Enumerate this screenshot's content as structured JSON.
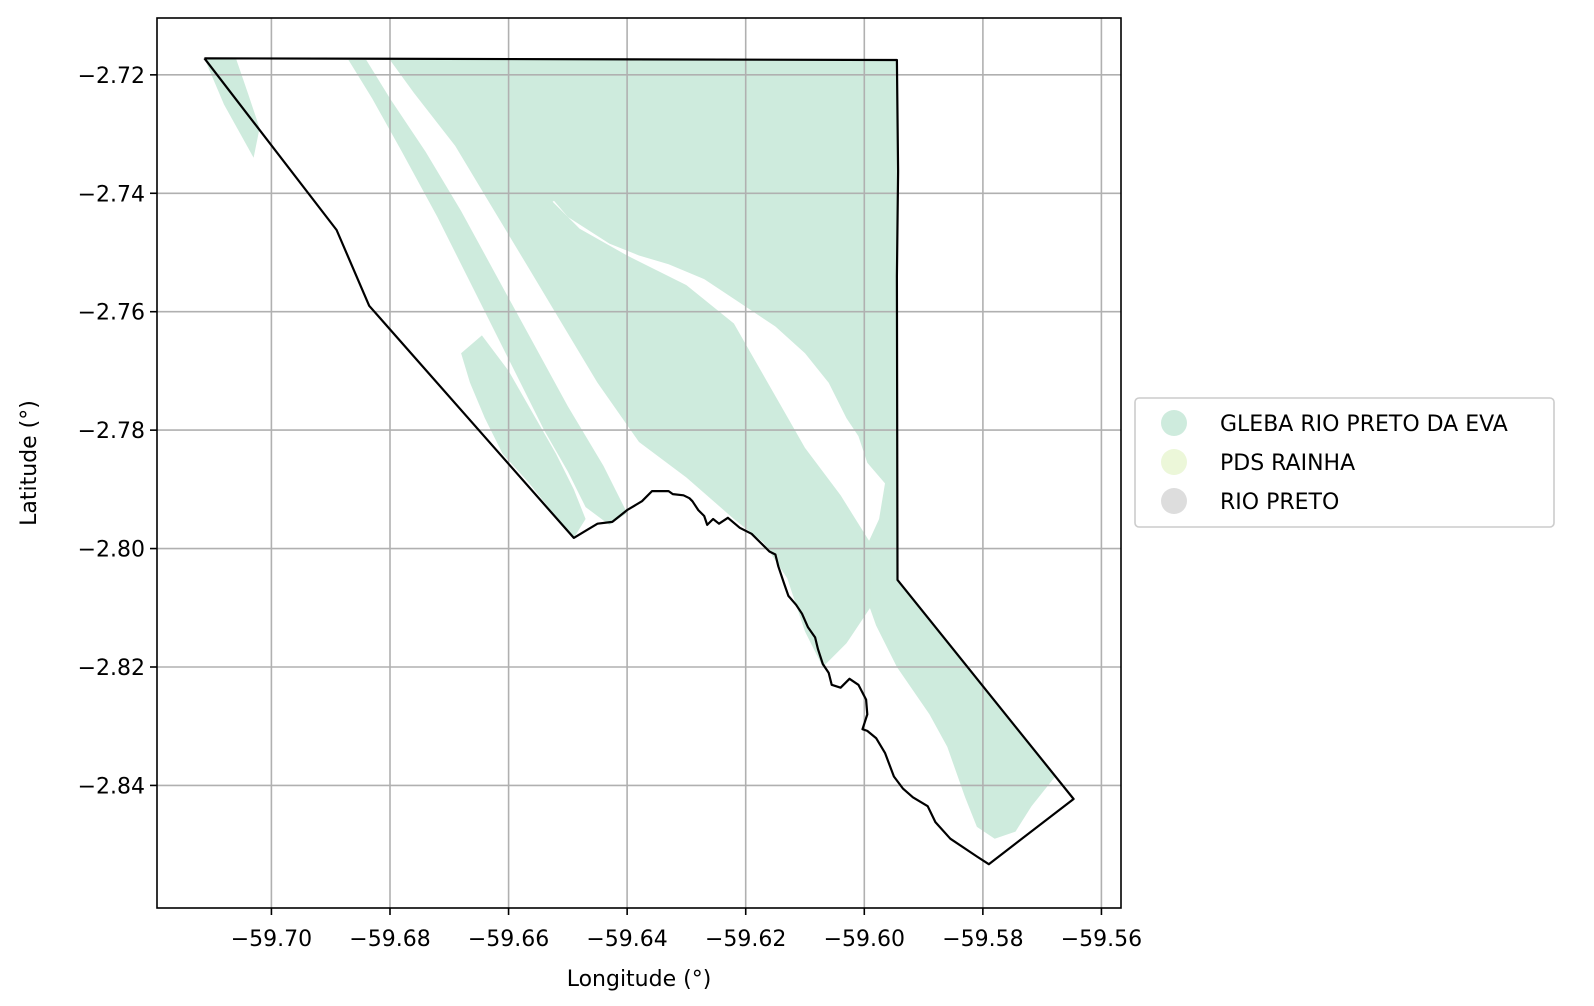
{
  "chart_data": {
    "type": "map",
    "xlabel": "Longitude (°)",
    "ylabel": "Latitude (°)",
    "xlim": [
      -59.7193,
      -59.5567
    ],
    "ylim": [
      -2.8607,
      -2.7104
    ],
    "xticks": [
      -59.7,
      -59.68,
      -59.66,
      -59.64,
      -59.62,
      -59.6,
      -59.58,
      -59.56
    ],
    "xtick_labels": [
      "−59.70",
      "−59.68",
      "−59.66",
      "−59.64",
      "−59.62",
      "−59.60",
      "−59.58",
      "−59.56"
    ],
    "yticks": [
      -2.72,
      -2.74,
      -2.76,
      -2.78,
      -2.8,
      -2.82,
      -2.84
    ],
    "ytick_labels": [
      "−2.72",
      "−2.74",
      "−2.76",
      "−2.78",
      "−2.80",
      "−2.82",
      "−2.84"
    ],
    "grid": true,
    "legend_position": "right-center",
    "legend": [
      {
        "label": "GLEBA RIO PRETO DA EVA",
        "color": "#ceebdd"
      },
      {
        "label": "PDS RAINHA",
        "color": "#ecf7d9"
      },
      {
        "label": "RIO PRETO",
        "color": "#dddddd"
      }
    ],
    "boundary": {
      "name": "area-boundary",
      "color": "#000000",
      "points": [
        [
          -59.7113,
          -2.7172
        ],
        [
          -59.5945,
          -2.7175
        ],
        [
          -59.5943,
          -2.7363
        ],
        [
          -59.5945,
          -2.754
        ],
        [
          -59.5944,
          -2.8053
        ],
        [
          -59.5647,
          -2.8423
        ],
        [
          -59.579,
          -2.8533
        ],
        [
          -59.581,
          -2.852
        ],
        [
          -59.5855,
          -2.849
        ],
        [
          -59.588,
          -2.8462
        ],
        [
          -59.5893,
          -2.8435
        ],
        [
          -59.5918,
          -2.842
        ],
        [
          -59.5935,
          -2.8405
        ],
        [
          -59.595,
          -2.8385
        ],
        [
          -59.5965,
          -2.8345
        ],
        [
          -59.598,
          -2.832
        ],
        [
          -59.5995,
          -2.8308
        ],
        [
          -59.6003,
          -2.8305
        ],
        [
          -59.5995,
          -2.828
        ],
        [
          -59.5997,
          -2.8255
        ],
        [
          -59.601,
          -2.823
        ],
        [
          -59.6025,
          -2.822
        ],
        [
          -59.604,
          -2.8235
        ],
        [
          -59.6055,
          -2.823
        ],
        [
          -59.606,
          -2.821
        ],
        [
          -59.607,
          -2.8195
        ],
        [
          -59.6078,
          -2.817
        ],
        [
          -59.6083,
          -2.815
        ],
        [
          -59.6095,
          -2.8133
        ],
        [
          -59.6105,
          -2.811
        ],
        [
          -59.6115,
          -2.8095
        ],
        [
          -59.6128,
          -2.808
        ],
        [
          -59.6135,
          -2.806
        ],
        [
          -59.6145,
          -2.803
        ],
        [
          -59.615,
          -2.801
        ],
        [
          -59.616,
          -2.8005
        ],
        [
          -59.6175,
          -2.799
        ],
        [
          -59.619,
          -2.7975
        ],
        [
          -59.621,
          -2.7965
        ],
        [
          -59.623,
          -2.7948
        ],
        [
          -59.6245,
          -2.7958
        ],
        [
          -59.6255,
          -2.795
        ],
        [
          -59.6265,
          -2.796
        ],
        [
          -59.627,
          -2.7945
        ],
        [
          -59.628,
          -2.7935
        ],
        [
          -59.629,
          -2.792
        ],
        [
          -59.6295,
          -2.7915
        ],
        [
          -59.6305,
          -2.791
        ],
        [
          -59.6323,
          -2.7908
        ],
        [
          -59.633,
          -2.7903
        ],
        [
          -59.6358,
          -2.7903
        ],
        [
          -59.6375,
          -2.792
        ],
        [
          -59.64,
          -2.7935
        ],
        [
          -59.6425,
          -2.7955
        ],
        [
          -59.645,
          -2.7958
        ],
        [
          -59.647,
          -2.797
        ],
        [
          -59.649,
          -2.7982
        ],
        [
          -59.6835,
          -2.759
        ],
        [
          -59.689,
          -2.7462
        ],
        [
          -59.7113,
          -2.7172
        ]
      ]
    },
    "land_cover_regions": [
      {
        "class": "GLEBA RIO PRETO DA EVA",
        "points": [
          [
            -59.5943,
            -2.718
          ],
          [
            -59.5945,
            -2.8053
          ],
          [
            -59.5678,
            -2.8385
          ],
          [
            -59.5718,
            -2.8435
          ],
          [
            -59.5745,
            -2.8478
          ],
          [
            -59.578,
            -2.849
          ],
          [
            -59.581,
            -2.847
          ],
          [
            -59.583,
            -2.842
          ],
          [
            -59.586,
            -2.8335
          ],
          [
            -59.589,
            -2.828
          ],
          [
            -59.5945,
            -2.82
          ],
          [
            -59.598,
            -2.813
          ],
          [
            -59.6003,
            -2.8065
          ],
          [
            -59.5998,
            -2.8
          ],
          [
            -59.5975,
            -2.795
          ],
          [
            -59.5965,
            -2.789
          ],
          [
            -59.5995,
            -2.7855
          ],
          [
            -59.601,
            -2.781
          ],
          [
            -59.603,
            -2.778
          ],
          [
            -59.606,
            -2.772
          ],
          [
            -59.61,
            -2.767
          ],
          [
            -59.615,
            -2.7625
          ],
          [
            -59.621,
            -2.7585
          ],
          [
            -59.627,
            -2.7545
          ],
          [
            -59.633,
            -2.752
          ],
          [
            -59.638,
            -2.7505
          ],
          [
            -59.643,
            -2.7485
          ],
          [
            -59.65,
            -2.744
          ],
          [
            -59.656,
            -2.737
          ],
          [
            -59.661,
            -2.73
          ],
          [
            -59.665,
            -2.724
          ],
          [
            -59.669,
            -2.719
          ],
          [
            -59.67,
            -2.7175
          ],
          [
            -59.5943,
            -2.7175
          ]
        ]
      },
      {
        "class": "GLEBA RIO PRETO DA EVA",
        "points": [
          [
            -59.67,
            -2.7175
          ],
          [
            -59.664,
            -2.7245
          ],
          [
            -59.659,
            -2.733
          ],
          [
            -59.654,
            -2.74
          ],
          [
            -59.648,
            -2.746
          ],
          [
            -59.64,
            -2.7505
          ],
          [
            -59.63,
            -2.7555
          ],
          [
            -59.622,
            -2.762
          ],
          [
            -59.618,
            -2.769
          ],
          [
            -59.614,
            -2.776
          ],
          [
            -59.61,
            -2.783
          ],
          [
            -59.604,
            -2.791
          ],
          [
            -59.599,
            -2.799
          ],
          [
            -59.599,
            -2.81
          ],
          [
            -59.603,
            -2.816
          ],
          [
            -59.607,
            -2.82
          ],
          [
            -59.61,
            -2.814
          ],
          [
            -59.613,
            -2.805
          ],
          [
            -59.617,
            -2.799
          ],
          [
            -59.622,
            -2.795
          ],
          [
            -59.63,
            -2.788
          ],
          [
            -59.638,
            -2.782
          ],
          [
            -59.645,
            -2.772
          ],
          [
            -59.651,
            -2.762
          ],
          [
            -59.657,
            -2.752
          ],
          [
            -59.663,
            -2.742
          ],
          [
            -59.669,
            -2.732
          ],
          [
            -59.676,
            -2.723
          ],
          [
            -59.68,
            -2.7175
          ]
        ]
      },
      {
        "class": "GLEBA RIO PRETO DA EVA",
        "points": [
          [
            -59.687,
            -2.7175
          ],
          [
            -59.683,
            -2.724
          ],
          [
            -59.678,
            -2.733
          ],
          [
            -59.672,
            -2.744
          ],
          [
            -59.666,
            -2.756
          ],
          [
            -59.66,
            -2.768
          ],
          [
            -59.654,
            -2.78
          ],
          [
            -59.65,
            -2.787
          ],
          [
            -59.647,
            -2.793
          ],
          [
            -59.643,
            -2.796
          ],
          [
            -59.64,
            -2.794
          ],
          [
            -59.644,
            -2.786
          ],
          [
            -59.65,
            -2.776
          ],
          [
            -59.656,
            -2.765
          ],
          [
            -59.662,
            -2.754
          ],
          [
            -59.668,
            -2.743
          ],
          [
            -59.674,
            -2.733
          ],
          [
            -59.68,
            -2.724
          ],
          [
            -59.684,
            -2.7175
          ]
        ]
      },
      {
        "class": "GLEBA RIO PRETO DA EVA",
        "points": [
          [
            -59.673,
            -2.7175
          ],
          [
            -59.67,
            -2.724
          ],
          [
            -59.665,
            -2.731
          ],
          [
            -59.66,
            -2.739
          ],
          [
            -59.656,
            -2.744
          ],
          [
            -59.652,
            -2.741
          ],
          [
            -59.656,
            -2.733
          ],
          [
            -59.662,
            -2.725
          ],
          [
            -59.668,
            -2.7175
          ]
        ]
      },
      {
        "class": "GLEBA RIO PRETO DA EVA",
        "points": [
          [
            -59.6645,
            -2.764
          ],
          [
            -59.66,
            -2.77
          ],
          [
            -59.656,
            -2.777
          ],
          [
            -59.652,
            -2.784
          ],
          [
            -59.649,
            -2.79
          ],
          [
            -59.647,
            -2.795
          ],
          [
            -59.649,
            -2.7982
          ],
          [
            -59.6525,
            -2.794
          ],
          [
            -59.6565,
            -2.789
          ],
          [
            -59.661,
            -2.784
          ],
          [
            -59.664,
            -2.778
          ],
          [
            -59.6665,
            -2.772
          ],
          [
            -59.668,
            -2.767
          ]
        ]
      },
      {
        "class": "GLEBA RIO PRETO DA EVA",
        "points": [
          [
            -59.7113,
            -2.7172
          ],
          [
            -59.706,
            -2.7172
          ],
          [
            -59.704,
            -2.723
          ],
          [
            -59.702,
            -2.729
          ],
          [
            -59.703,
            -2.734
          ],
          [
            -59.708,
            -2.725
          ]
        ]
      }
    ]
  }
}
